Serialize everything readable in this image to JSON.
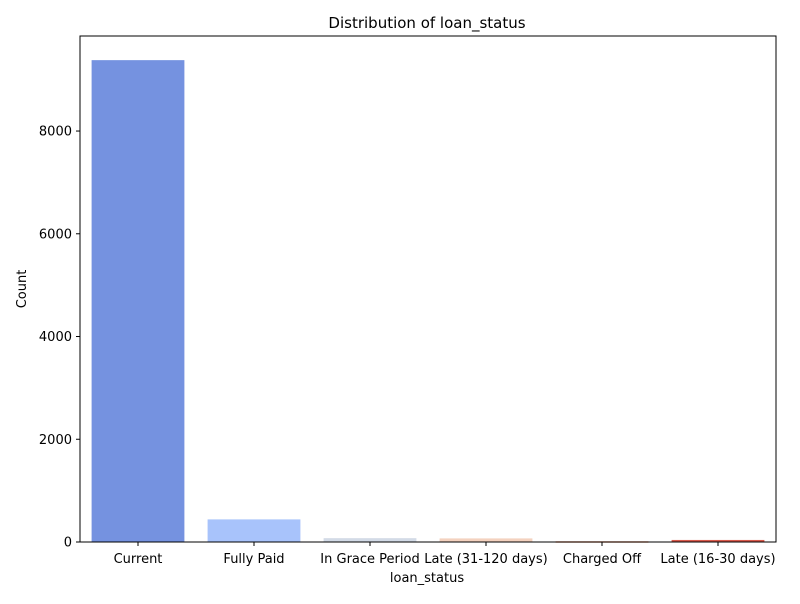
{
  "chart_data": {
    "type": "bar",
    "title": "Distribution of loan_status",
    "xlabel": "loan_status",
    "ylabel": "Count",
    "categories": [
      "Current",
      "Fully Paid",
      "In Grace Period",
      "Late (31-120 days)",
      "Charged Off",
      "Late (16-30 days)"
    ],
    "values": [
      9380,
      440,
      75,
      70,
      15,
      40
    ],
    "colors": [
      "#7592e0",
      "#a8c3fb",
      "#d3dbe7",
      "#f4d2bf",
      "#f0a080",
      "#d9594b"
    ],
    "yticks": [
      0,
      2000,
      4000,
      6000,
      8000
    ],
    "ylim": [
      0,
      9850
    ],
    "grid": false,
    "legend": false
  }
}
